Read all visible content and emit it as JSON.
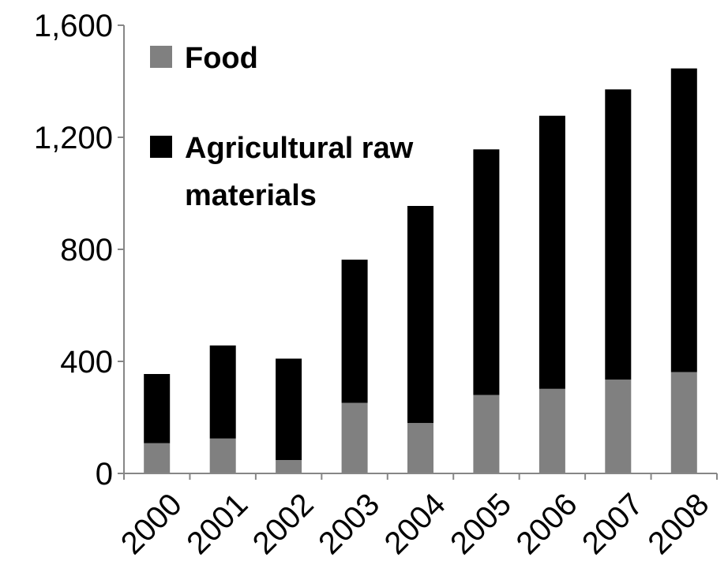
{
  "chart_data": {
    "type": "bar",
    "stacked": true,
    "categories": [
      "2000",
      "2001",
      "2002",
      "2003",
      "2004",
      "2005",
      "2006",
      "2007",
      "2008"
    ],
    "series": [
      {
        "name": "Food",
        "color": "#808080",
        "values": [
          108,
          125,
          48,
          252,
          180,
          280,
          302,
          335,
          362
        ]
      },
      {
        "name": "Agricultural raw materials",
        "color": "#000000",
        "values": [
          247,
          332,
          362,
          511,
          775,
          877,
          975,
          1036,
          1084
        ]
      }
    ],
    "ylim": [
      0,
      1600
    ],
    "yticks": [
      0,
      400,
      800,
      1200,
      1600
    ],
    "ytick_labels": [
      "0",
      "400",
      "800",
      "1,200",
      "1,600"
    ],
    "legend_lines": [
      [
        "Food"
      ],
      [
        "Agricultural raw",
        "materials"
      ]
    ],
    "legend_position": "top-left",
    "grid": false,
    "title": "",
    "xlabel": "",
    "ylabel": ""
  }
}
